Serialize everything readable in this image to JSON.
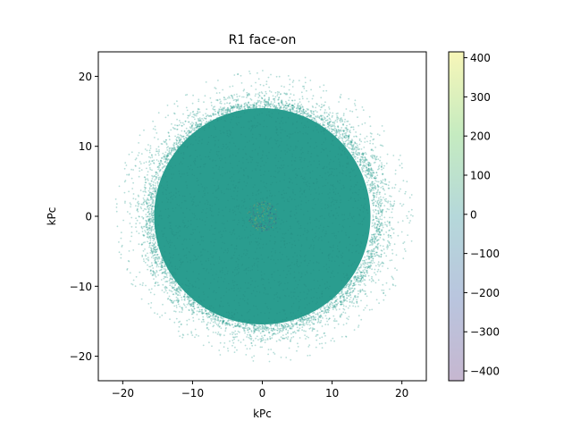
{
  "chart_data": {
    "type": "scatter",
    "title": "R1 face-on",
    "xlabel": "kPc",
    "ylabel": "kPc",
    "xlim": [
      -23.5,
      23.5
    ],
    "ylim": [
      -23.5,
      23.5
    ],
    "xticks": [
      -20,
      -10,
      0,
      10,
      20
    ],
    "yticks": [
      -20,
      -10,
      0,
      10,
      20
    ],
    "xtick_labels": [
      "−20",
      "−10",
      "0",
      "10",
      "20"
    ],
    "ytick_labels": [
      "−20",
      "−10",
      "0",
      "10",
      "20"
    ],
    "grid": false,
    "marker_color": "#2a9d8f",
    "colormap": "viridis",
    "point_alpha": 0.35,
    "distribution": {
      "inner_disk_radius": 15.5,
      "outer_ring_radius_min": 16,
      "outer_ring_radius_max": 20
    },
    "colorbar": {
      "range": [
        -425,
        415
      ],
      "ticks": [
        -400,
        -300,
        -200,
        -100,
        0,
        100,
        200,
        300,
        400
      ],
      "tick_labels": [
        "−400",
        "−300",
        "−200",
        "−100",
        "0",
        "100",
        "200",
        "300",
        "400"
      ]
    }
  }
}
